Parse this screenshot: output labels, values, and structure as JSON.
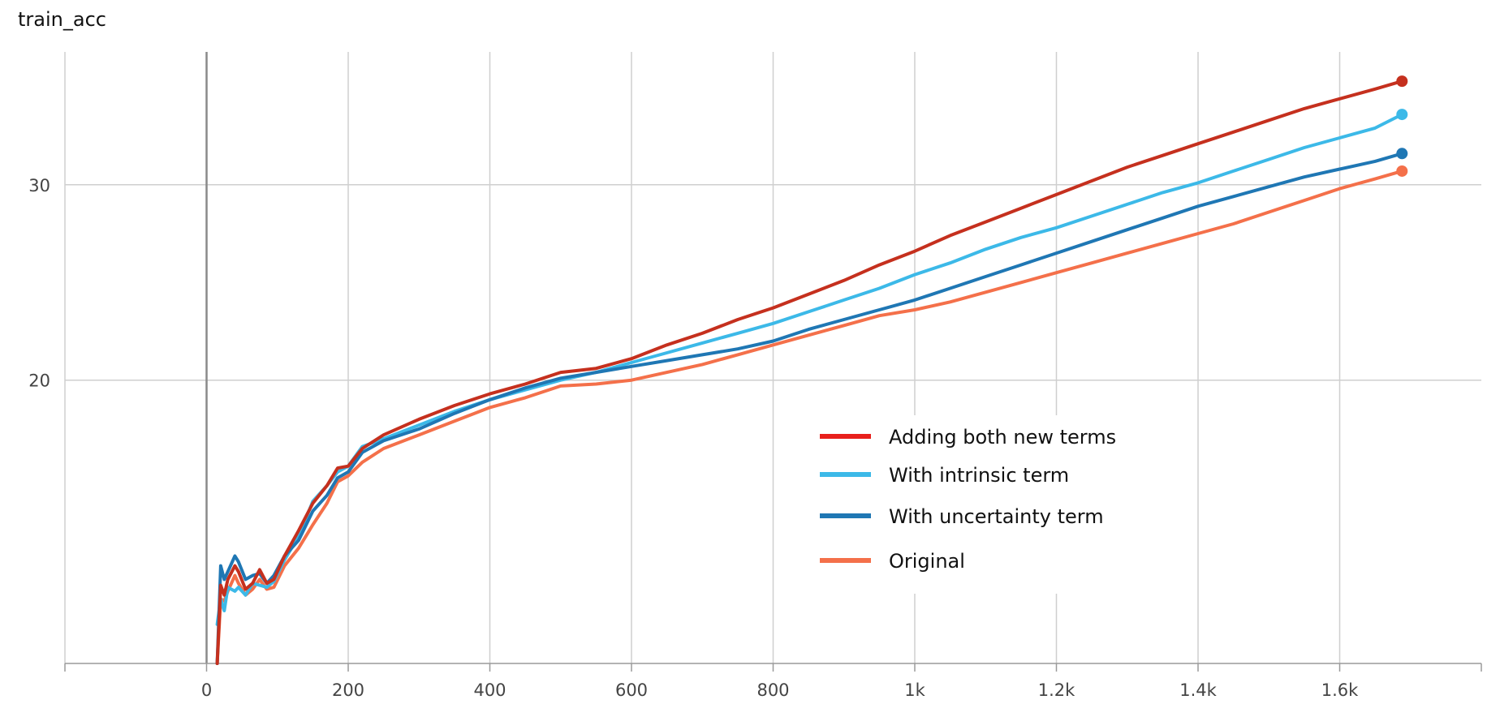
{
  "chart_data": {
    "type": "line",
    "title": "train_acc",
    "xlabel": "",
    "ylabel": "",
    "xlim": [
      -200,
      1800
    ],
    "ylim": [
      5.5,
      36.8
    ],
    "x_ticks": [
      {
        "value": 0,
        "label": "0"
      },
      {
        "value": 200,
        "label": "200"
      },
      {
        "value": 400,
        "label": "400"
      },
      {
        "value": 600,
        "label": "600"
      },
      {
        "value": 800,
        "label": "800"
      },
      {
        "value": 1000,
        "label": "1k"
      },
      {
        "value": 1200,
        "label": "1.2k"
      },
      {
        "value": 1400,
        "label": "1.4k"
      },
      {
        "value": 1600,
        "label": "1.6k"
      }
    ],
    "y_ticks": [
      {
        "value": 20,
        "label": "20"
      },
      {
        "value": 30,
        "label": "30"
      }
    ],
    "grid": true,
    "legend_position": "center-right",
    "series": [
      {
        "name": "Adding both new terms",
        "color": "#c5301e",
        "legend_color": "#e8201c",
        "points": [
          [
            15,
            5.5
          ],
          [
            20,
            9.5
          ],
          [
            25,
            9.0
          ],
          [
            30,
            9.8
          ],
          [
            40,
            10.5
          ],
          [
            45,
            10.2
          ],
          [
            55,
            9.3
          ],
          [
            65,
            9.6
          ],
          [
            75,
            10.3
          ],
          [
            85,
            9.6
          ],
          [
            95,
            9.8
          ],
          [
            110,
            11.0
          ],
          [
            130,
            12.3
          ],
          [
            150,
            13.7
          ],
          [
            170,
            14.6
          ],
          [
            185,
            15.5
          ],
          [
            200,
            15.6
          ],
          [
            220,
            16.5
          ],
          [
            250,
            17.2
          ],
          [
            300,
            18.0
          ],
          [
            350,
            18.7
          ],
          [
            400,
            19.3
          ],
          [
            450,
            19.8
          ],
          [
            500,
            20.4
          ],
          [
            550,
            20.6
          ],
          [
            600,
            21.1
          ],
          [
            650,
            21.8
          ],
          [
            700,
            22.4
          ],
          [
            750,
            23.1
          ],
          [
            800,
            23.7
          ],
          [
            850,
            24.4
          ],
          [
            900,
            25.1
          ],
          [
            950,
            25.9
          ],
          [
            1000,
            26.6
          ],
          [
            1050,
            27.4
          ],
          [
            1100,
            28.1
          ],
          [
            1150,
            28.8
          ],
          [
            1200,
            29.5
          ],
          [
            1250,
            30.2
          ],
          [
            1300,
            30.9
          ],
          [
            1350,
            31.5
          ],
          [
            1400,
            32.1
          ],
          [
            1450,
            32.7
          ],
          [
            1500,
            33.3
          ],
          [
            1550,
            33.9
          ],
          [
            1600,
            34.4
          ],
          [
            1650,
            34.9
          ],
          [
            1688,
            35.3
          ]
        ]
      },
      {
        "name": "With intrinsic term",
        "color": "#3cb9e8",
        "legend_color": "#3cb9e8",
        "points": [
          [
            15,
            7.5
          ],
          [
            20,
            8.8
          ],
          [
            25,
            8.2
          ],
          [
            30,
            9.4
          ],
          [
            40,
            9.2
          ],
          [
            45,
            9.4
          ],
          [
            55,
            9.0
          ],
          [
            65,
            9.6
          ],
          [
            75,
            9.5
          ],
          [
            85,
            9.4
          ],
          [
            95,
            9.7
          ],
          [
            110,
            10.8
          ],
          [
            130,
            12.0
          ],
          [
            150,
            13.8
          ],
          [
            170,
            14.6
          ],
          [
            185,
            15.3
          ],
          [
            200,
            15.6
          ],
          [
            220,
            16.6
          ],
          [
            250,
            17.0
          ],
          [
            300,
            17.7
          ],
          [
            350,
            18.4
          ],
          [
            400,
            19.0
          ],
          [
            450,
            19.5
          ],
          [
            500,
            20.0
          ],
          [
            550,
            20.4
          ],
          [
            600,
            20.9
          ],
          [
            650,
            21.4
          ],
          [
            700,
            21.9
          ],
          [
            750,
            22.4
          ],
          [
            800,
            22.9
          ],
          [
            850,
            23.5
          ],
          [
            900,
            24.1
          ],
          [
            950,
            24.7
          ],
          [
            1000,
            25.4
          ],
          [
            1050,
            26.0
          ],
          [
            1100,
            26.7
          ],
          [
            1150,
            27.3
          ],
          [
            1200,
            27.8
          ],
          [
            1250,
            28.4
          ],
          [
            1300,
            29.0
          ],
          [
            1350,
            29.6
          ],
          [
            1400,
            30.1
          ],
          [
            1450,
            30.7
          ],
          [
            1500,
            31.3
          ],
          [
            1550,
            31.9
          ],
          [
            1600,
            32.4
          ],
          [
            1650,
            32.9
          ],
          [
            1688,
            33.6
          ]
        ]
      },
      {
        "name": "With uncertainty term",
        "color": "#1f77b4",
        "legend_color": "#1f77b4",
        "points": [
          [
            15,
            5.5
          ],
          [
            20,
            10.5
          ],
          [
            25,
            9.8
          ],
          [
            30,
            10.2
          ],
          [
            40,
            11.0
          ],
          [
            45,
            10.7
          ],
          [
            55,
            9.8
          ],
          [
            65,
            10.0
          ],
          [
            75,
            10.1
          ],
          [
            85,
            9.6
          ],
          [
            95,
            10.0
          ],
          [
            110,
            11.0
          ],
          [
            130,
            11.8
          ],
          [
            150,
            13.3
          ],
          [
            170,
            14.1
          ],
          [
            185,
            15.0
          ],
          [
            200,
            15.3
          ],
          [
            220,
            16.3
          ],
          [
            250,
            16.9
          ],
          [
            300,
            17.5
          ],
          [
            350,
            18.3
          ],
          [
            400,
            19.0
          ],
          [
            450,
            19.6
          ],
          [
            500,
            20.1
          ],
          [
            550,
            20.4
          ],
          [
            600,
            20.7
          ],
          [
            650,
            21.0
          ],
          [
            700,
            21.3
          ],
          [
            750,
            21.6
          ],
          [
            800,
            22.0
          ],
          [
            850,
            22.6
          ],
          [
            900,
            23.1
          ],
          [
            950,
            23.6
          ],
          [
            1000,
            24.1
          ],
          [
            1050,
            24.7
          ],
          [
            1100,
            25.3
          ],
          [
            1150,
            25.9
          ],
          [
            1200,
            26.5
          ],
          [
            1250,
            27.1
          ],
          [
            1300,
            27.7
          ],
          [
            1350,
            28.3
          ],
          [
            1400,
            28.9
          ],
          [
            1450,
            29.4
          ],
          [
            1500,
            29.9
          ],
          [
            1550,
            30.4
          ],
          [
            1600,
            30.8
          ],
          [
            1650,
            31.2
          ],
          [
            1688,
            31.6
          ]
        ]
      },
      {
        "name": "Original",
        "color": "#f4704a",
        "legend_color": "#f4704a",
        "points": [
          [
            15,
            5.5
          ],
          [
            20,
            8.8
          ],
          [
            25,
            8.7
          ],
          [
            30,
            9.2
          ],
          [
            40,
            10.0
          ],
          [
            45,
            9.6
          ],
          [
            55,
            9.0
          ],
          [
            65,
            9.3
          ],
          [
            75,
            9.8
          ],
          [
            85,
            9.3
          ],
          [
            95,
            9.4
          ],
          [
            110,
            10.5
          ],
          [
            130,
            11.4
          ],
          [
            150,
            12.6
          ],
          [
            170,
            13.7
          ],
          [
            185,
            14.8
          ],
          [
            200,
            15.1
          ],
          [
            220,
            15.8
          ],
          [
            250,
            16.5
          ],
          [
            300,
            17.2
          ],
          [
            350,
            17.9
          ],
          [
            400,
            18.6
          ],
          [
            450,
            19.1
          ],
          [
            500,
            19.7
          ],
          [
            550,
            19.8
          ],
          [
            600,
            20.0
          ],
          [
            650,
            20.4
          ],
          [
            700,
            20.8
          ],
          [
            750,
            21.3
          ],
          [
            800,
            21.8
          ],
          [
            850,
            22.3
          ],
          [
            900,
            22.8
          ],
          [
            950,
            23.3
          ],
          [
            1000,
            23.6
          ],
          [
            1050,
            24.0
          ],
          [
            1100,
            24.5
          ],
          [
            1150,
            25.0
          ],
          [
            1200,
            25.5
          ],
          [
            1250,
            26.0
          ],
          [
            1300,
            26.5
          ],
          [
            1350,
            27.0
          ],
          [
            1400,
            27.5
          ],
          [
            1450,
            28.0
          ],
          [
            1500,
            28.6
          ],
          [
            1550,
            29.2
          ],
          [
            1600,
            29.8
          ],
          [
            1650,
            30.3
          ],
          [
            1688,
            30.7
          ]
        ]
      }
    ]
  }
}
